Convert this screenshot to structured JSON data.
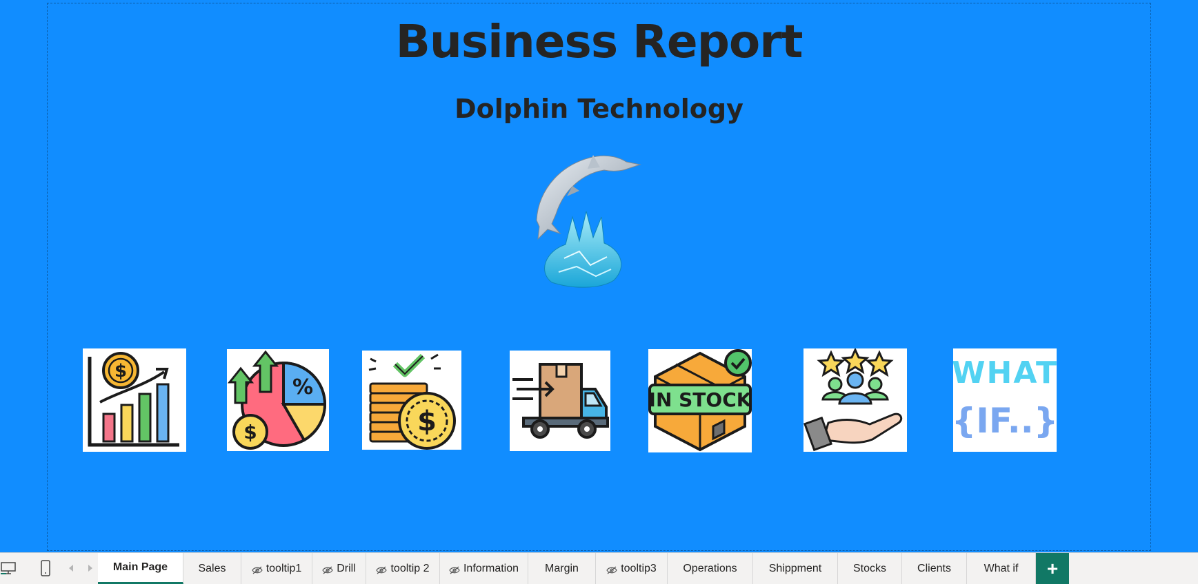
{
  "report": {
    "title": "Business Report",
    "subtitle": "Dolphin Technology"
  },
  "tiles": [
    {
      "name": "sales-chart-icon"
    },
    {
      "name": "margin-pie-icon"
    },
    {
      "name": "coins-check-icon"
    },
    {
      "name": "delivery-truck-icon"
    },
    {
      "name": "in-stock-box-icon",
      "label": "IN STOCK"
    },
    {
      "name": "clients-rating-icon"
    },
    {
      "name": "what-if-icon",
      "line1": "WHAT",
      "line2": "{IF..}"
    }
  ],
  "tabs": [
    {
      "label": "Main Page",
      "active": true,
      "hidden": false
    },
    {
      "label": "Sales",
      "hidden": false
    },
    {
      "label": "tooltip1",
      "hidden": true
    },
    {
      "label": "Drill",
      "hidden": true
    },
    {
      "label": "tooltip 2",
      "hidden": true
    },
    {
      "label": "Information",
      "hidden": true
    },
    {
      "label": "Margin",
      "hidden": false
    },
    {
      "label": "tooltip3",
      "hidden": true
    },
    {
      "label": "Operations",
      "hidden": false
    },
    {
      "label": "Shippment",
      "hidden": false
    },
    {
      "label": "Stocks",
      "hidden": false
    },
    {
      "label": "Clients",
      "hidden": false
    },
    {
      "label": "What if",
      "hidden": false
    }
  ],
  "add_page_label": "+",
  "colors": {
    "canvas": "#118dff",
    "title_text": "#252423",
    "accent": "#117865"
  }
}
